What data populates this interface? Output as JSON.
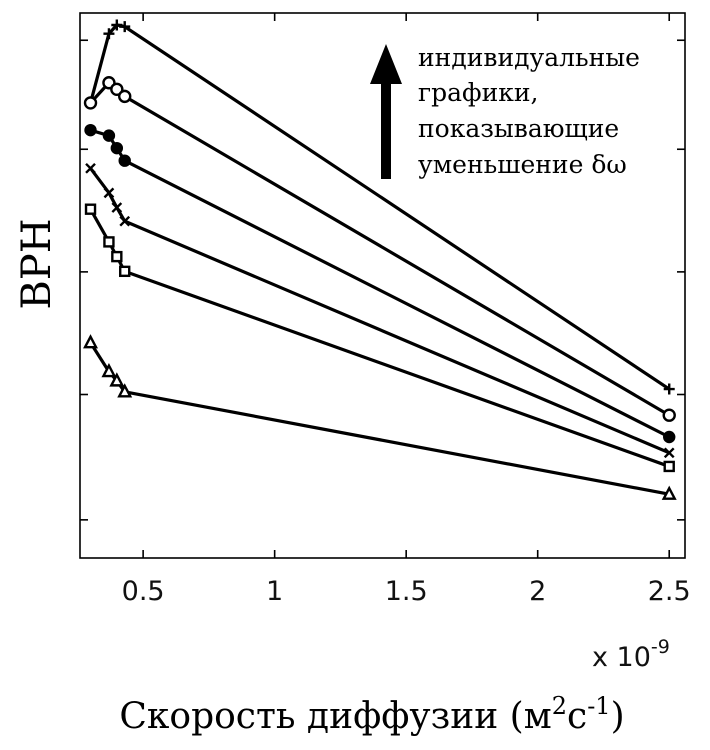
{
  "chart_data": {
    "type": "line",
    "title": "",
    "xlabel": "Скорость диффузии (м²с⁻¹)",
    "xlabel_parts": {
      "main": "Скорость диффузии (м",
      "sup1": "2",
      "mid": "с",
      "sup2": "-1",
      "end": ")"
    },
    "ylabel": "ВРН",
    "x_multiplier": "x 10",
    "x_multiplier_exp": "-9",
    "xlim": [
      0.26,
      2.56
    ],
    "ylim": [
      0,
      1
    ],
    "x_ticks": [
      0.5,
      1,
      1.5,
      2,
      2.5
    ],
    "x_tick_labels": [
      "0.5",
      "1",
      "1.5",
      "2",
      "2.5"
    ],
    "y_ticks": [
      0.07,
      0.3,
      0.525,
      0.75,
      0.95
    ],
    "y_tick_labels": [
      "",
      "",
      "",
      "",
      ""
    ],
    "grid": false,
    "legend": "none",
    "annotation": {
      "lines": [
        "индивидуальные",
        "графики,",
        "показывающие",
        "уменьшение δω"
      ],
      "arrow_direction": "up"
    },
    "series": [
      {
        "marker": "plus",
        "x": [
          0.3,
          0.37,
          0.4,
          0.43,
          2.5
        ],
        "y": [
          0.835,
          0.962,
          0.978,
          0.975,
          0.31
        ]
      },
      {
        "marker": "circle",
        "x": [
          0.3,
          0.37,
          0.4,
          0.43,
          2.5
        ],
        "y": [
          0.835,
          0.872,
          0.86,
          0.847,
          0.262
        ]
      },
      {
        "marker": "dot",
        "x": [
          0.3,
          0.37,
          0.4,
          0.43,
          2.5
        ],
        "y": [
          0.785,
          0.775,
          0.752,
          0.729,
          0.222
        ]
      },
      {
        "marker": "x",
        "x": [
          0.3,
          0.37,
          0.4,
          0.43,
          2.5
        ],
        "y": [
          0.715,
          0.67,
          0.643,
          0.618,
          0.193
        ]
      },
      {
        "marker": "square",
        "x": [
          0.3,
          0.37,
          0.4,
          0.43,
          2.5
        ],
        "y": [
          0.64,
          0.58,
          0.553,
          0.526,
          0.168
        ]
      },
      {
        "marker": "triangle",
        "x": [
          0.3,
          0.37,
          0.4,
          0.43,
          2.5
        ],
        "y": [
          0.395,
          0.342,
          0.325,
          0.305,
          0.117
        ]
      }
    ]
  }
}
